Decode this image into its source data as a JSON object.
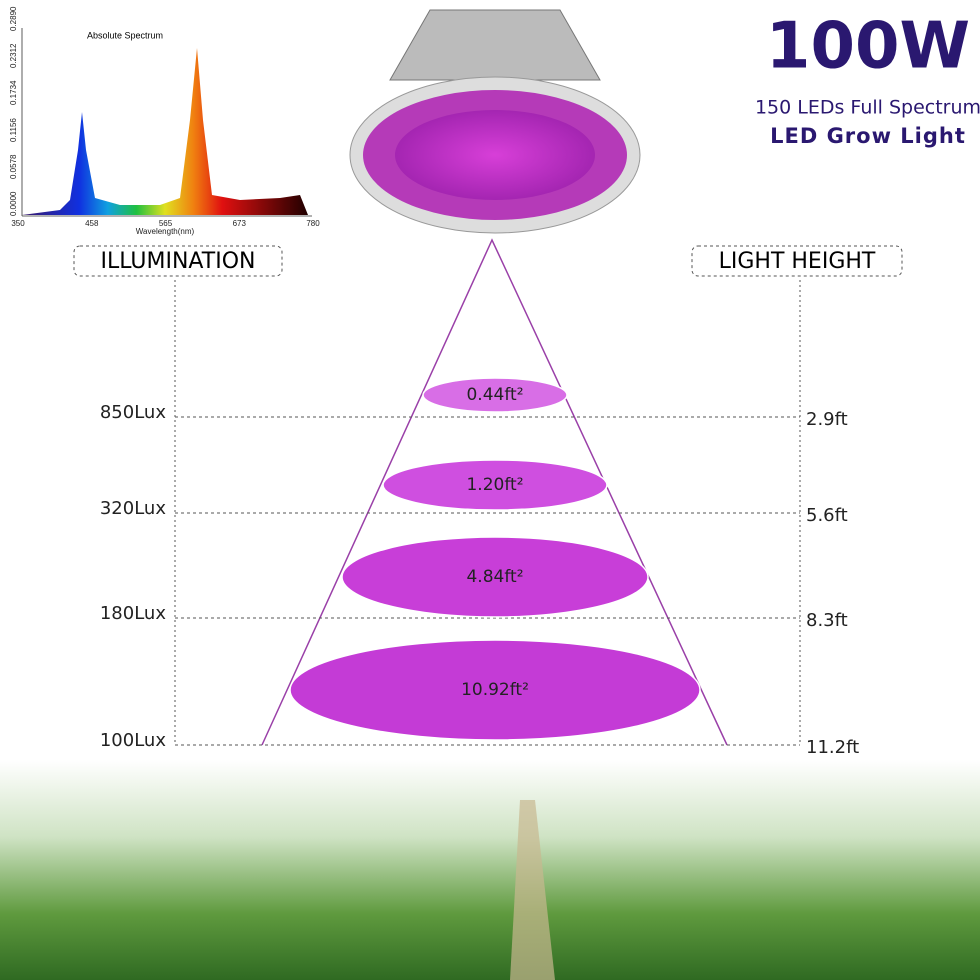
{
  "spectrum": {
    "title": "Absolute Spectrum",
    "xlabel": "Wavelength(nm)",
    "xticks": [
      "350",
      "458",
      "565",
      "673",
      "780"
    ],
    "yticks": [
      "0.0000",
      "0.0578",
      "0.1156",
      "0.1734",
      "0.2312",
      "0.2890"
    ]
  },
  "header": {
    "power": "100W",
    "subtitle": "150 LEDs Full Spectrum",
    "product": "LED Grow Light"
  },
  "labels": {
    "left": "ILLUMINATION",
    "right": "LIGHT HEIGHT"
  },
  "levels": [
    {
      "lux": "850Lux",
      "height": "2.9ft",
      "area": "0.44ft²"
    },
    {
      "lux": "320Lux",
      "height": "5.6ft",
      "area": "1.20ft²"
    },
    {
      "lux": "180Lux",
      "height": "8.3ft",
      "area": "4.84ft²"
    },
    {
      "lux": "100Lux",
      "height": "11.2ft",
      "area": "10.92ft²"
    }
  ]
}
